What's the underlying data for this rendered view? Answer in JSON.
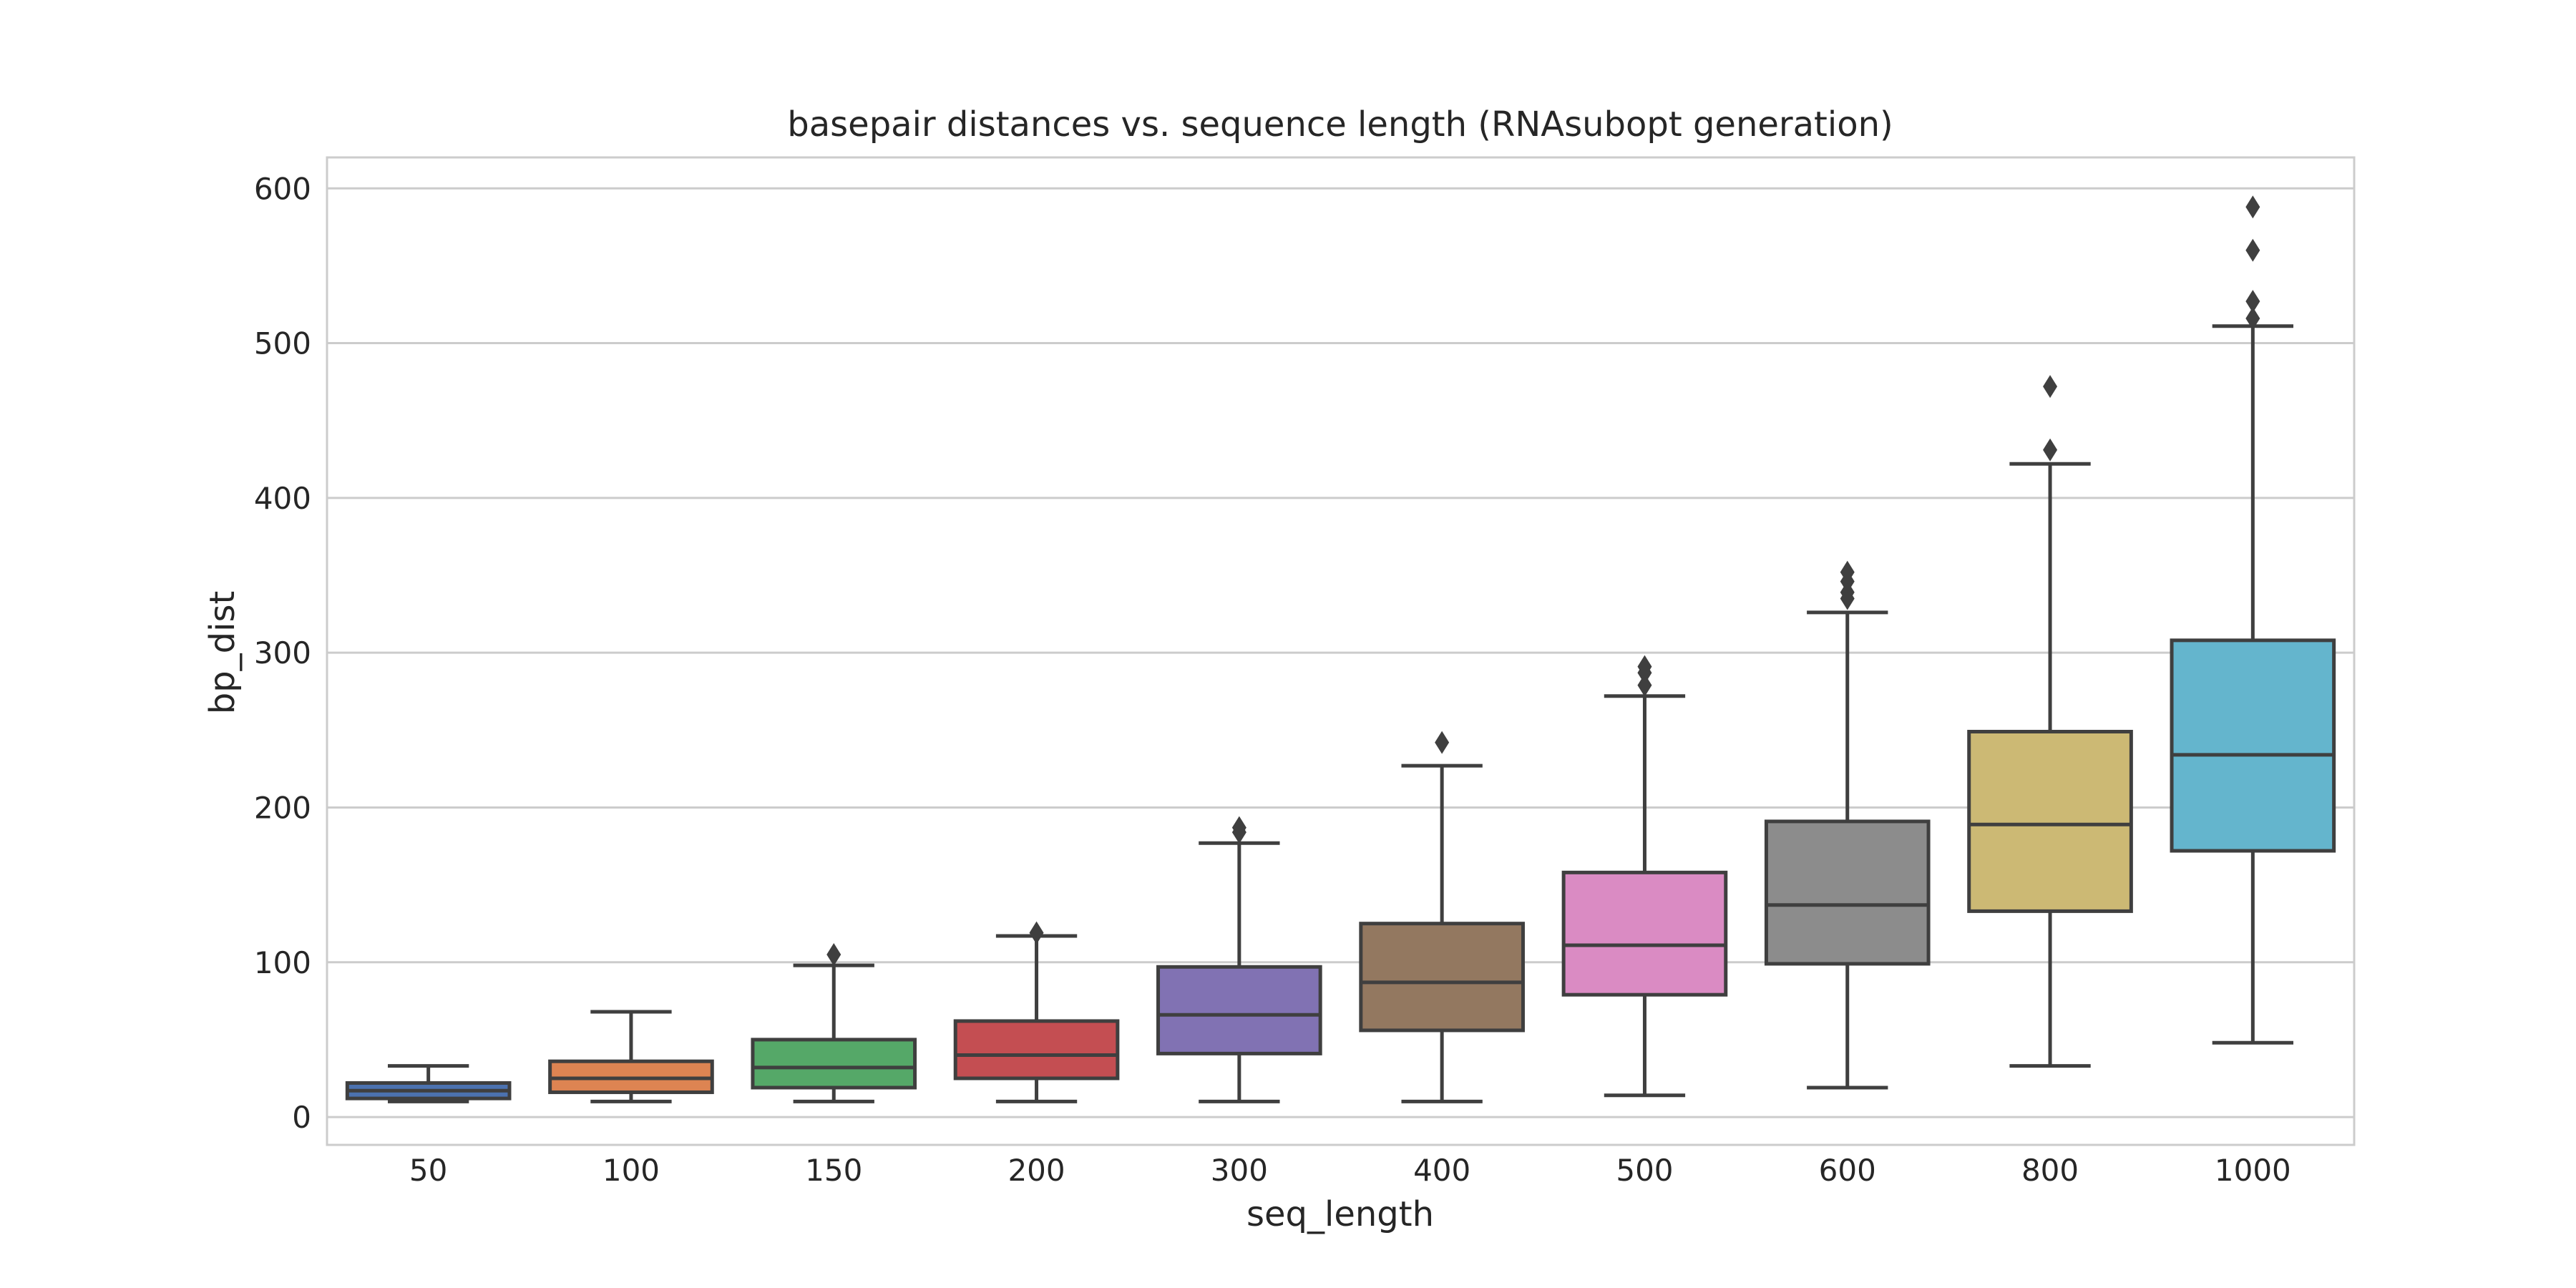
{
  "chart_data": {
    "type": "boxplot",
    "title": "basepair distances vs. sequence length (RNAsubopt generation)",
    "xlabel": "seq_length",
    "ylabel": "bp_dist",
    "ylim": [
      -18,
      620
    ],
    "yticks": [
      0,
      100,
      200,
      300,
      400,
      500,
      600
    ],
    "grid": true,
    "legend": "none",
    "categories": [
      "50",
      "100",
      "150",
      "200",
      "300",
      "400",
      "500",
      "600",
      "800",
      "1000"
    ],
    "boxes": [
      {
        "category": "50",
        "whisker_low": 10,
        "q1": 12,
        "median": 17,
        "q3": 22,
        "whisker_high": 33,
        "outliers": [],
        "color": "#4c72b0"
      },
      {
        "category": "100",
        "whisker_low": 10,
        "q1": 16,
        "median": 25,
        "q3": 36,
        "whisker_high": 68,
        "outliers": [],
        "color": "#dd8452"
      },
      {
        "category": "150",
        "whisker_low": 10,
        "q1": 19,
        "median": 32,
        "q3": 50,
        "whisker_high": 98,
        "outliers": [
          105
        ],
        "color": "#55a868"
      },
      {
        "category": "200",
        "whisker_low": 10,
        "q1": 25,
        "median": 40,
        "q3": 62,
        "whisker_high": 117,
        "outliers": [
          119
        ],
        "color": "#c44e52"
      },
      {
        "category": "300",
        "whisker_low": 10,
        "q1": 41,
        "median": 66,
        "q3": 97,
        "whisker_high": 177,
        "outliers": [
          184,
          187
        ],
        "color": "#8172b3"
      },
      {
        "category": "400",
        "whisker_low": 10,
        "q1": 56,
        "median": 87,
        "q3": 125,
        "whisker_high": 227,
        "outliers": [
          242
        ],
        "color": "#937860"
      },
      {
        "category": "500",
        "whisker_low": 14,
        "q1": 79,
        "median": 111,
        "q3": 158,
        "whisker_high": 272,
        "outliers": [
          279,
          287,
          291
        ],
        "color": "#da8bc3"
      },
      {
        "category": "600",
        "whisker_low": 19,
        "q1": 99,
        "median": 137,
        "q3": 191,
        "whisker_high": 326,
        "outliers": [
          335,
          339,
          346,
          352
        ],
        "color": "#8c8c8c"
      },
      {
        "category": "800",
        "whisker_low": 33,
        "q1": 133,
        "median": 189,
        "q3": 249,
        "whisker_high": 422,
        "outliers": [
          431,
          472
        ],
        "color": "#ccb974"
      },
      {
        "category": "1000",
        "whisker_low": 48,
        "q1": 172,
        "median": 234,
        "q3": 308,
        "whisker_high": 511,
        "outliers": [
          516,
          527,
          560,
          588
        ],
        "color": "#64b5cd"
      }
    ]
  }
}
